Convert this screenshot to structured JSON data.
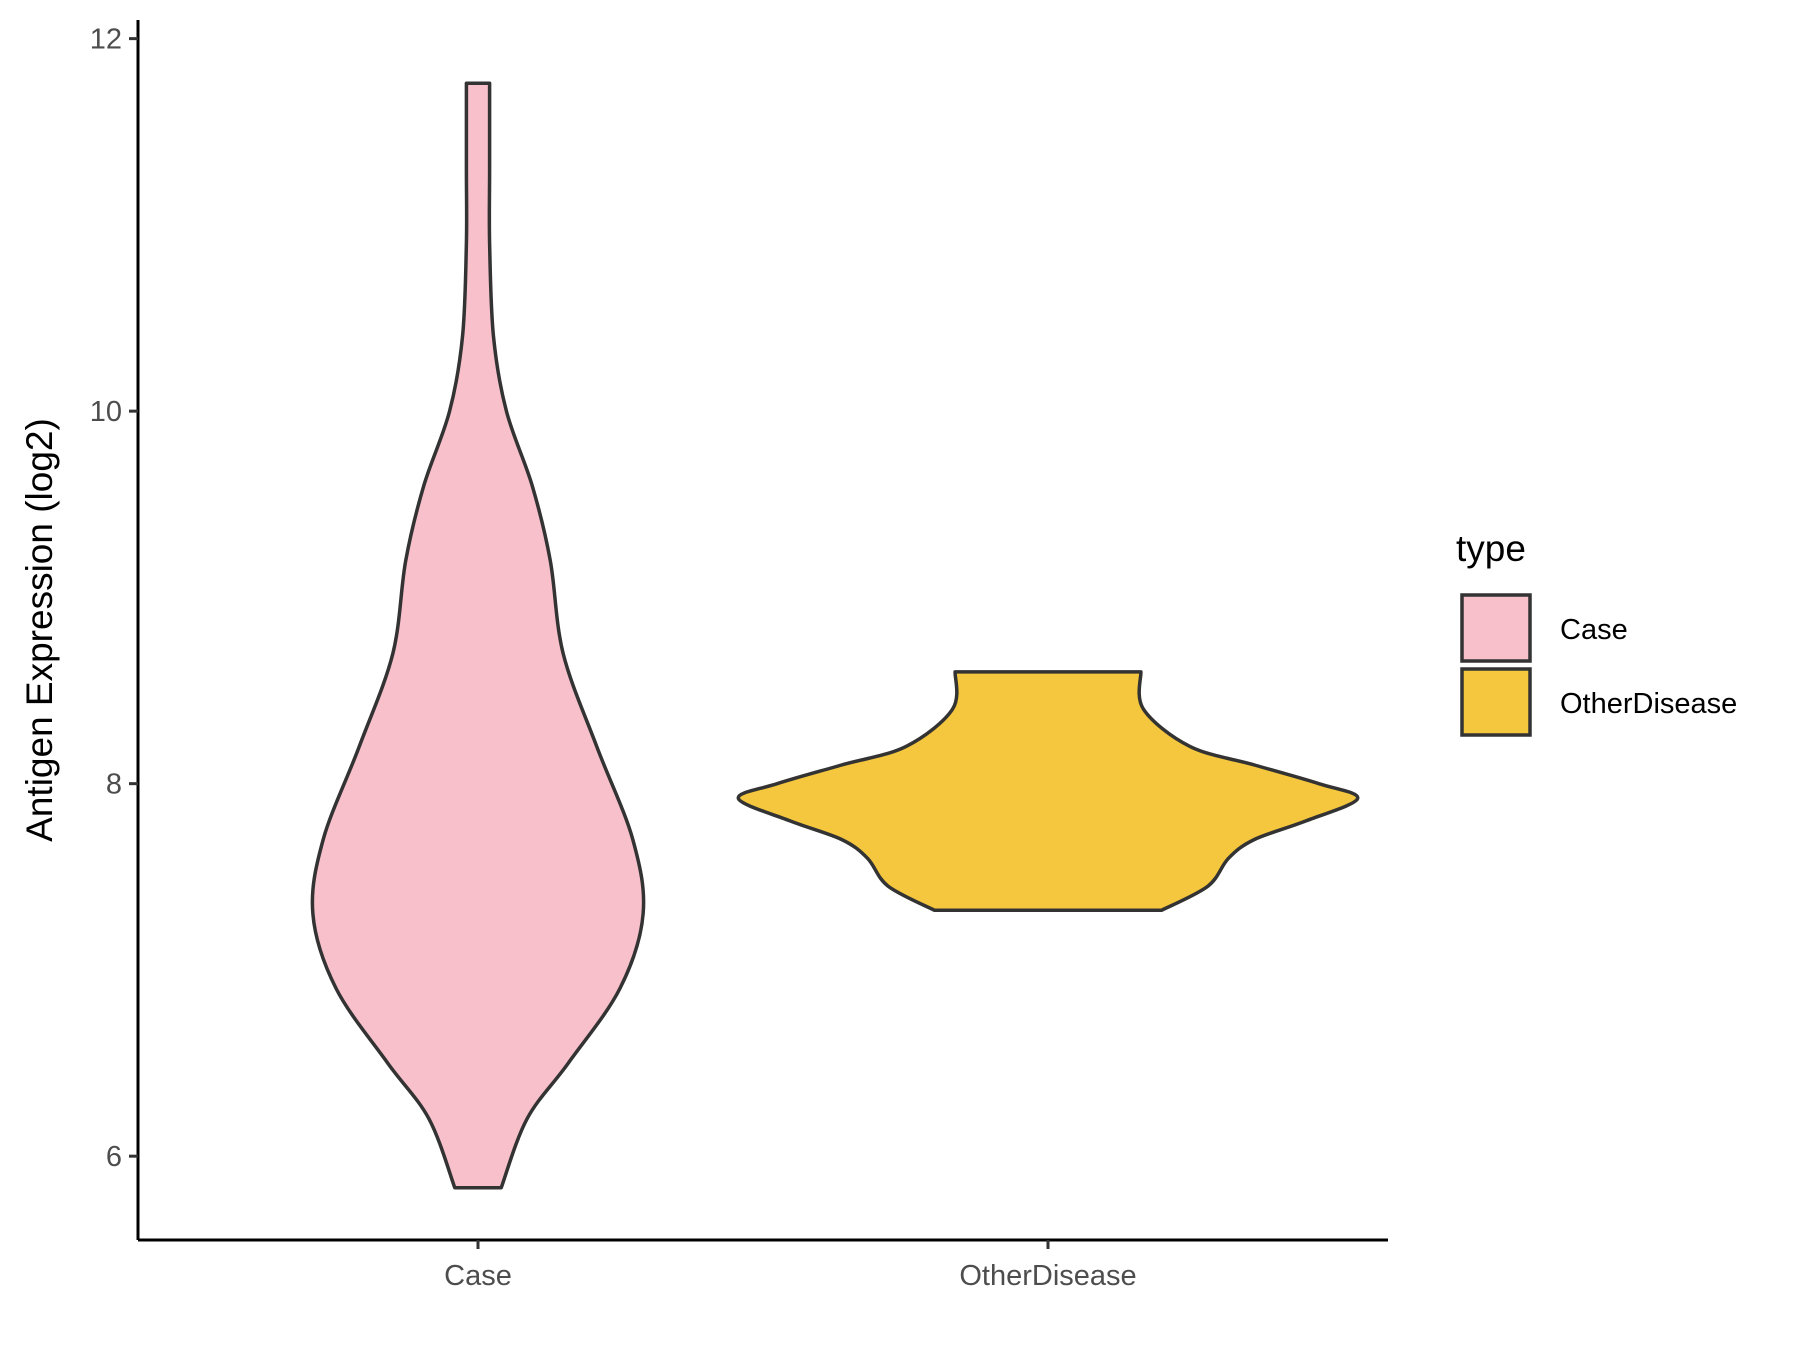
{
  "chart_data": {
    "type": "violin",
    "ylabel": "Antigen Expression (log2)",
    "xlabel": "",
    "categories": [
      "Case",
      "OtherDisease"
    ],
    "ylim": [
      5.55,
      12.1
    ],
    "y_ticks": [
      6,
      8,
      10,
      12
    ],
    "grid": false,
    "legend": {
      "title": "type",
      "placement": "right",
      "entries": [
        {
          "label": "Case",
          "color": "#f7c0cb"
        },
        {
          "label": "OtherDisease",
          "color": "#f5c73e"
        }
      ]
    },
    "series": [
      {
        "category": "Case",
        "color": "#f7c0cb",
        "y_min": 5.83,
        "y_max": 11.76,
        "density_profile": [
          {
            "y": 5.83,
            "w": 0.09
          },
          {
            "y": 6.2,
            "w": 0.19
          },
          {
            "y": 6.5,
            "w": 0.35
          },
          {
            "y": 6.9,
            "w": 0.55
          },
          {
            "y": 7.3,
            "w": 0.64
          },
          {
            "y": 7.7,
            "w": 0.6
          },
          {
            "y": 8.2,
            "w": 0.46
          },
          {
            "y": 8.7,
            "w": 0.33
          },
          {
            "y": 9.2,
            "w": 0.28
          },
          {
            "y": 9.6,
            "w": 0.21
          },
          {
            "y": 10.0,
            "w": 0.11
          },
          {
            "y": 10.4,
            "w": 0.06
          },
          {
            "y": 10.9,
            "w": 0.045
          },
          {
            "y": 11.3,
            "w": 0.045
          },
          {
            "y": 11.76,
            "w": 0.045
          }
        ]
      },
      {
        "category": "OtherDisease",
        "color": "#f5c73e",
        "y_min": 7.32,
        "y_max": 8.6,
        "density_profile": [
          {
            "y": 7.32,
            "w": 0.44
          },
          {
            "y": 7.45,
            "w": 0.62
          },
          {
            "y": 7.6,
            "w": 0.7
          },
          {
            "y": 7.7,
            "w": 0.8
          },
          {
            "y": 7.8,
            "w": 1.0
          },
          {
            "y": 7.92,
            "w": 1.2
          },
          {
            "y": 8.0,
            "w": 1.05
          },
          {
            "y": 8.1,
            "w": 0.8
          },
          {
            "y": 8.2,
            "w": 0.55
          },
          {
            "y": 8.4,
            "w": 0.37
          },
          {
            "y": 8.6,
            "w": 0.36
          }
        ]
      }
    ]
  }
}
